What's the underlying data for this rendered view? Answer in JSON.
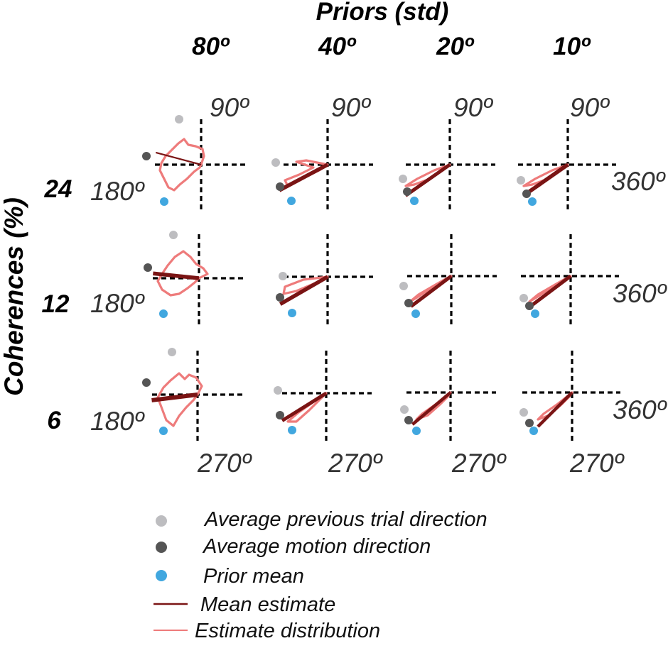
{
  "title": "Priors (std)",
  "ylabel": "Coherences (%)",
  "colors": {
    "previous": "#bdbdc0",
    "motion": "#555555",
    "prior": "#41a7df",
    "mean_estimate": "#7a1414",
    "distribution": "#ee7b7b"
  },
  "chart_data": {
    "type": "polar-grid",
    "column_header_label": "Priors (std)",
    "row_header_label": "Coherences (%)",
    "priors_std": [
      "80º",
      "40º",
      "20º",
      "10º"
    ],
    "coherences": [
      "24",
      "12",
      "6"
    ],
    "angle_labels": {
      "top": "90º",
      "left": "180º",
      "right": "360º",
      "bottom": "270º"
    },
    "prior_mean_direction_deg": 225,
    "legend": [
      {
        "key": "previous",
        "marker": "dot",
        "label": "Average previous trial direction"
      },
      {
        "key": "motion",
        "marker": "dot",
        "label": "Average motion direction"
      },
      {
        "key": "prior",
        "marker": "dot",
        "label": "Prior mean"
      },
      {
        "key": "mean_estimate",
        "marker": "line",
        "label": "Mean estimate"
      },
      {
        "key": "distribution",
        "marker": "line",
        "label": "Estimate distribution"
      }
    ],
    "mean_estimate_direction_deg": [
      [
        165,
        208,
        215,
        215
      ],
      [
        174,
        210,
        217,
        217
      ],
      [
        187,
        212,
        220,
        225
      ]
    ]
  }
}
